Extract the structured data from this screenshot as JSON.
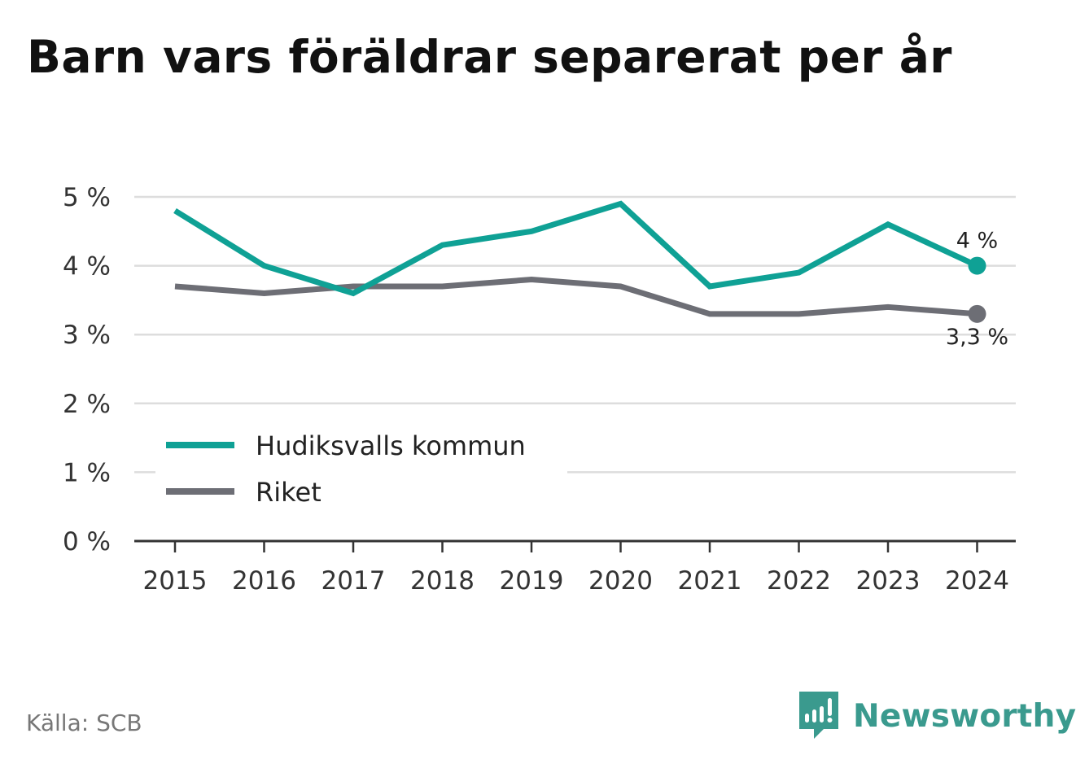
{
  "header": {
    "title": "Barn vars föräldrar separerat per år"
  },
  "source": "Källa: SCB",
  "brand": {
    "name": "Newsworthy",
    "icon": "newsworthy-logo-icon"
  },
  "colors": {
    "kommun": "#0fa195",
    "riket": "#6d6e75",
    "grid": "#dddddd",
    "axis": "#333333"
  },
  "chart_data": {
    "type": "line",
    "categories": [
      "2015",
      "2016",
      "2017",
      "2018",
      "2019",
      "2020",
      "2021",
      "2022",
      "2023",
      "2024"
    ],
    "ylim": [
      0,
      5
    ],
    "yticks": [
      "0 %",
      "1 %",
      "2 %",
      "3 %",
      "4 %",
      "5 %"
    ],
    "grid": true,
    "legend_position": "lower-left",
    "series": [
      {
        "name": "Hudiksvalls kommun",
        "color": "#0fa195",
        "values": [
          4.8,
          4.0,
          3.6,
          4.3,
          4.5,
          4.9,
          3.7,
          3.9,
          4.6,
          4.0
        ],
        "end_label": "4 %"
      },
      {
        "name": "Riket",
        "color": "#6d6e75",
        "values": [
          3.7,
          3.6,
          3.7,
          3.7,
          3.8,
          3.7,
          3.3,
          3.3,
          3.4,
          3.3
        ],
        "end_label": "3,3 %"
      }
    ]
  }
}
